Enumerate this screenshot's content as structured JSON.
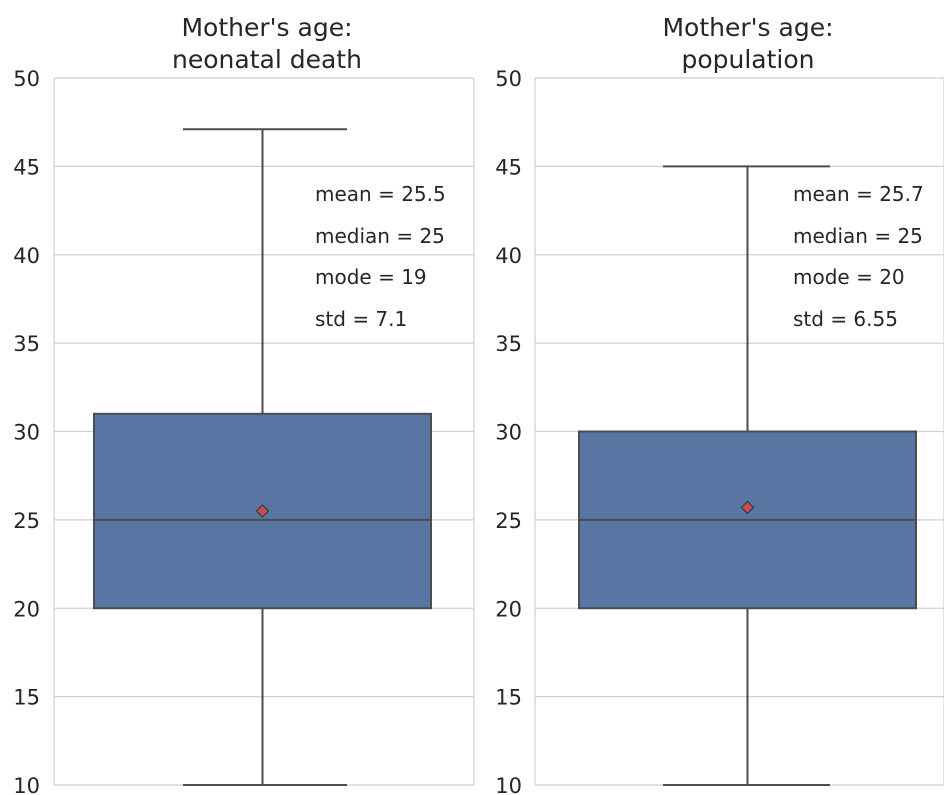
{
  "chart_data": [
    {
      "type": "box",
      "title_lines": [
        "Mother's age:",
        "neonatal death"
      ],
      "ylim": [
        10,
        50
      ],
      "yticks": [
        10,
        15,
        20,
        25,
        30,
        35,
        40,
        45,
        50
      ],
      "grid": true,
      "box": {
        "whisker_low": 10,
        "q1": 20,
        "median": 25,
        "q3": 31,
        "whisker_high": 47.1,
        "mean": 25.5
      },
      "annotations": [
        "mean = 25.5",
        "median = 25",
        "mode = 19",
        "std = 7.1"
      ],
      "colors": {
        "box": "#5975a4",
        "mean_marker": "#c44e52"
      }
    },
    {
      "type": "box",
      "title_lines": [
        "Mother's age:",
        "population"
      ],
      "ylim": [
        10,
        50
      ],
      "yticks": [
        10,
        15,
        20,
        25,
        30,
        35,
        40,
        45,
        50
      ],
      "grid": true,
      "box": {
        "whisker_low": 10,
        "q1": 20,
        "median": 25,
        "q3": 30,
        "whisker_high": 45,
        "mean": 25.7
      },
      "annotations": [
        "mean = 25.7",
        "median = 25",
        "mode = 20",
        "std = 6.55"
      ],
      "colors": {
        "box": "#5975a4",
        "mean_marker": "#c44e52"
      }
    }
  ]
}
